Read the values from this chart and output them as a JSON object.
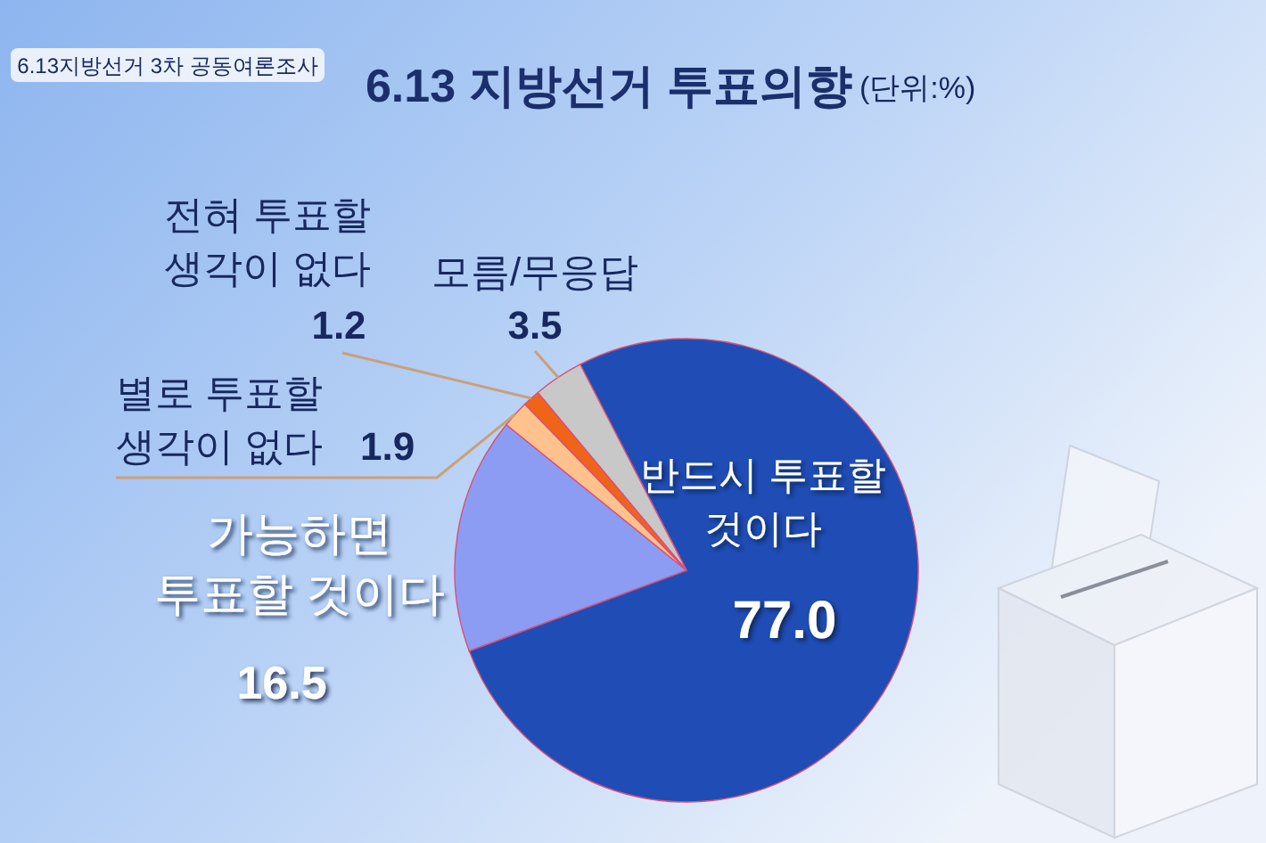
{
  "chart_data": {
    "type": "pie",
    "title": "6.13 지방선거 투표의향",
    "subtitle": "6.13지방선거 3차 공동여론조사",
    "annotations": [
      "(단위:%)"
    ],
    "categories": [
      "반드시 투표할 것이다",
      "가능하면 투표할 것이다",
      "별로 투표할 생각이 없다",
      "전혀 투표할 생각이 없다",
      "모름/무응답"
    ],
    "values": [
      77.0,
      16.5,
      1.9,
      1.2,
      3.5
    ],
    "value_labels": [
      "77.0",
      "16.5",
      "1.9",
      "1.2",
      "3.5"
    ],
    "colors": [
      "#1f4db5",
      "#8c9cf2",
      "#ffc28c",
      "#f0641a",
      "#c8c8c8"
    ]
  }
}
